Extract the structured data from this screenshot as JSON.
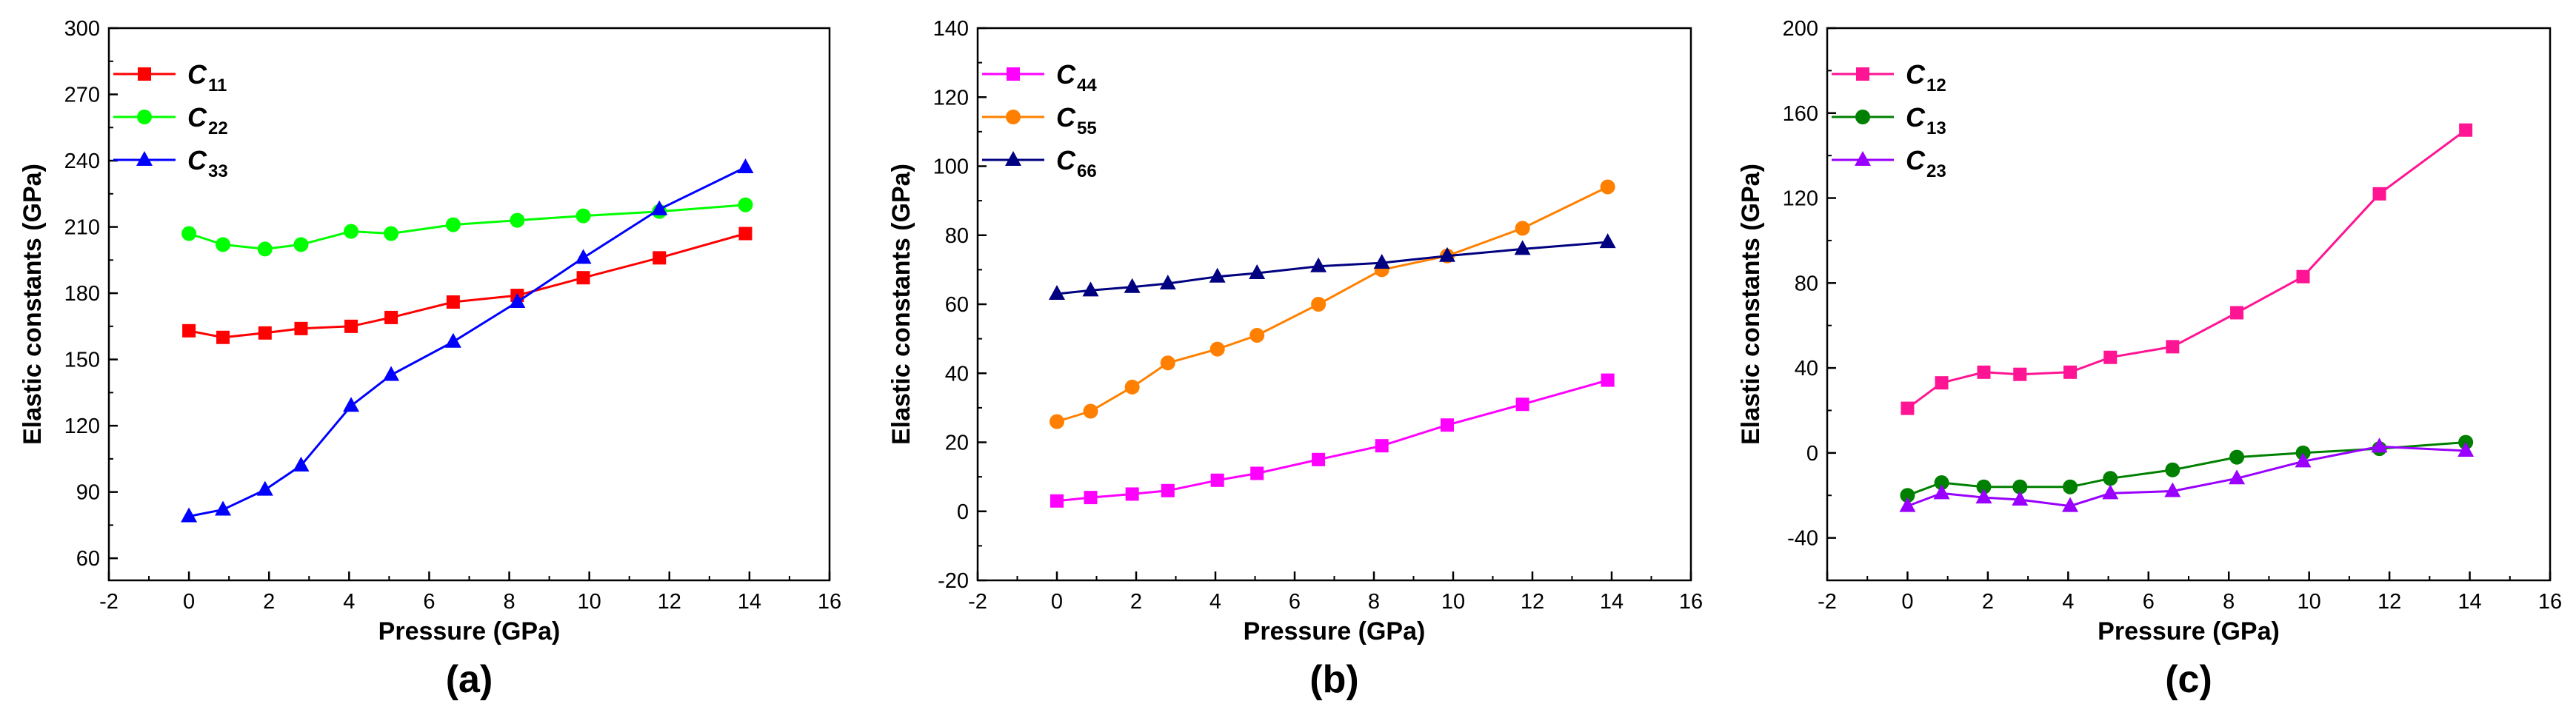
{
  "chart_data": [
    {
      "type": "line",
      "panel_label": "(a)",
      "xlabel": "Pressure (GPa)",
      "ylabel": "Elastic constants (GPa)",
      "xlim": [
        -2,
        16
      ],
      "ylim": [
        50,
        300
      ],
      "xticks": [
        -2,
        0,
        2,
        4,
        6,
        8,
        10,
        12,
        14,
        16
      ],
      "yticks": [
        60,
        90,
        120,
        150,
        180,
        210,
        240,
        270,
        300
      ],
      "legend_position": "top-left",
      "x": [
        0,
        0.85,
        1.9,
        2.8,
        4.05,
        5.05,
        6.6,
        8.2,
        9.85,
        11.75,
        13.9
      ],
      "series": [
        {
          "name": "C11",
          "symbol": "C",
          "subscript": "11",
          "color": "#ff0000",
          "marker": "square",
          "values": [
            163,
            160,
            162,
            164,
            165,
            169,
            176,
            179,
            187,
            196,
            207
          ]
        },
        {
          "name": "C22",
          "symbol": "C",
          "subscript": "22",
          "color": "#00ff00",
          "marker": "circle",
          "values": [
            207,
            202,
            200,
            202,
            208,
            207,
            211,
            213,
            215,
            217,
            220
          ]
        },
        {
          "name": "C33",
          "symbol": "C",
          "subscript": "33",
          "color": "#0000ff",
          "marker": "triangle",
          "values": [
            79,
            82,
            91,
            102,
            129,
            143,
            158,
            176,
            196,
            218,
            237
          ]
        }
      ]
    },
    {
      "type": "line",
      "panel_label": "(b)",
      "xlabel": "Pressure (GPa)",
      "ylabel": "Elastic constants (GPa)",
      "xlim": [
        -2,
        16
      ],
      "ylim": [
        -20,
        140
      ],
      "xticks": [
        -2,
        0,
        2,
        4,
        6,
        8,
        10,
        12,
        14,
        16
      ],
      "yticks": [
        -20,
        0,
        20,
        40,
        60,
        80,
        100,
        120,
        140
      ],
      "legend_position": "top-left",
      "x": [
        0,
        0.85,
        1.9,
        2.8,
        4.05,
        5.05,
        6.6,
        8.2,
        9.85,
        11.75,
        13.9
      ],
      "series": [
        {
          "name": "C44",
          "symbol": "C",
          "subscript": "44",
          "color": "#ff00ff",
          "marker": "square",
          "values": [
            3,
            4,
            5,
            6,
            9,
            11,
            15,
            19,
            25,
            31,
            38
          ]
        },
        {
          "name": "C55",
          "symbol": "C",
          "subscript": "55",
          "color": "#ff8000",
          "marker": "circle",
          "values": [
            26,
            29,
            36,
            43,
            47,
            51,
            60,
            70,
            74,
            82,
            94
          ]
        },
        {
          "name": "C66",
          "symbol": "C",
          "subscript": "66",
          "color": "#000080",
          "marker": "triangle",
          "values": [
            63,
            64,
            65,
            66,
            68,
            69,
            71,
            72,
            74,
            76,
            78
          ]
        }
      ]
    },
    {
      "type": "line",
      "panel_label": "(c)",
      "xlabel": "Pressure (GPa)",
      "ylabel": "Elastic constants (GPa)",
      "xlim": [
        -2,
        16
      ],
      "ylim": [
        -60,
        200
      ],
      "xticks": [
        -2,
        0,
        2,
        4,
        6,
        8,
        10,
        12,
        14,
        16
      ],
      "yticks": [
        -40,
        0,
        40,
        80,
        120,
        160,
        200
      ],
      "legend_position": "top-left",
      "x": [
        0,
        0.85,
        1.9,
        2.8,
        4.05,
        5.05,
        6.6,
        8.2,
        9.85,
        11.75,
        13.9
      ],
      "series": [
        {
          "name": "C12",
          "symbol": "C",
          "subscript": "12",
          "color": "#ff1493",
          "marker": "square",
          "values": [
            21,
            33,
            38,
            37,
            38,
            45,
            50,
            66,
            83,
            122,
            152
          ]
        },
        {
          "name": "C13",
          "symbol": "C",
          "subscript": "13",
          "color": "#008000",
          "marker": "circle",
          "values": [
            -20,
            -14,
            -16,
            -16,
            -16,
            -12,
            -8,
            -2,
            0,
            2,
            5
          ]
        },
        {
          "name": "C23",
          "symbol": "C",
          "subscript": "23",
          "color": "#9900ff",
          "marker": "triangle",
          "values": [
            -25,
            -19,
            -21,
            -22,
            -25,
            -19,
            -18,
            -12,
            -4,
            3,
            1
          ]
        }
      ]
    }
  ]
}
